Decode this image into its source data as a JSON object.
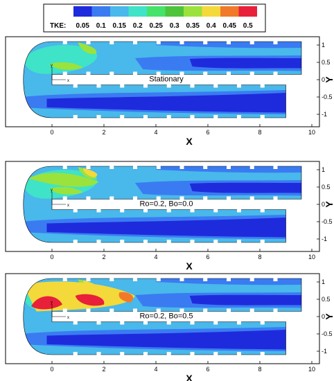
{
  "legend": {
    "title": "TKE:",
    "levels": [
      "0.05",
      "0.1",
      "0.15",
      "0.2",
      "0.25",
      "0.3",
      "0.35",
      "0.4",
      "0.45",
      "0.5"
    ],
    "colors": [
      "#1e2bdc",
      "#3a7bf2",
      "#49b8ea",
      "#3fe3c8",
      "#46e36a",
      "#4ec43a",
      "#9be23c",
      "#f4d93a",
      "#f07a2a",
      "#e8203a"
    ]
  },
  "axes": {
    "xlabel": "X",
    "ylabel": "Y",
    "xticks": [
      "0",
      "2",
      "4",
      "6",
      "8",
      "10"
    ],
    "yticks": [
      "1",
      "0.5",
      "0",
      "-0.5",
      "-1"
    ],
    "mini_axes": {
      "x": "x",
      "y": "y"
    }
  },
  "panels": [
    {
      "label": "Stationary",
      "intensity": 0
    },
    {
      "label": "Ro=0.2, Bo=0.0",
      "intensity": 1
    },
    {
      "label": "Ro=0.2, Bo=0.5",
      "intensity": 2
    }
  ]
}
